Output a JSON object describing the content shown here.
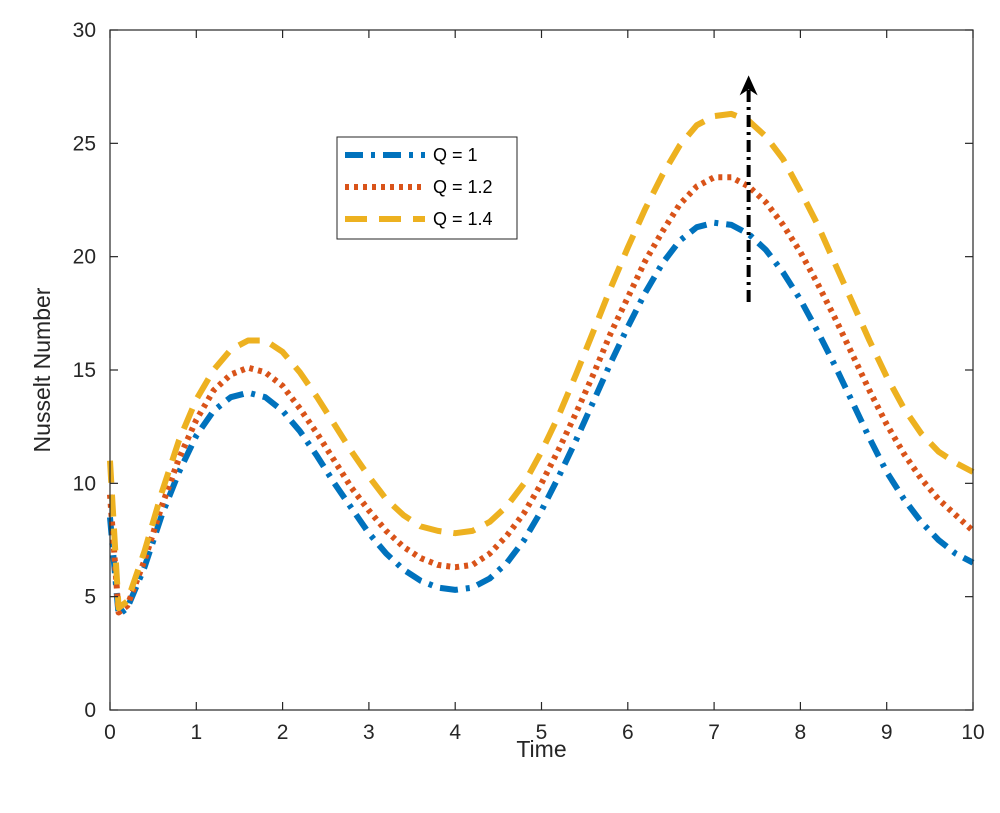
{
  "chart_data": {
    "type": "line",
    "title": "",
    "xlabel": "Time",
    "ylabel": "Nusselt Number",
    "xlim": [
      0,
      10
    ],
    "ylim": [
      0,
      30
    ],
    "xticks": [
      0,
      1,
      2,
      3,
      4,
      5,
      6,
      7,
      8,
      9,
      10
    ],
    "yticks": [
      0,
      5,
      10,
      15,
      20,
      25,
      30
    ],
    "grid": false,
    "legend_position": "upper-left-center",
    "x": [
      0,
      0.1,
      0.2,
      0.4,
      0.6,
      0.8,
      1.0,
      1.2,
      1.4,
      1.6,
      1.8,
      2.0,
      2.2,
      2.4,
      2.6,
      2.8,
      3.0,
      3.2,
      3.4,
      3.6,
      3.8,
      4.0,
      4.2,
      4.4,
      4.6,
      4.8,
      5.0,
      5.2,
      5.4,
      5.6,
      5.8,
      6.0,
      6.2,
      6.4,
      6.6,
      6.8,
      7.0,
      7.2,
      7.4,
      7.6,
      7.8,
      8.0,
      8.2,
      8.4,
      8.6,
      8.8,
      9.0,
      9.2,
      9.4,
      9.6,
      9.8,
      10.0
    ],
    "series": [
      {
        "name": "Q = 1",
        "color": "#0072BD",
        "style": "dash-dot",
        "values": [
          8.5,
          4.2,
          4.5,
          6.3,
          8.6,
          10.5,
          12.1,
          13.2,
          13.8,
          14.0,
          13.8,
          13.2,
          12.3,
          11.2,
          10.0,
          8.9,
          7.8,
          6.9,
          6.2,
          5.7,
          5.4,
          5.3,
          5.4,
          5.8,
          6.5,
          7.5,
          8.8,
          10.3,
          11.9,
          13.6,
          15.3,
          16.9,
          18.4,
          19.7,
          20.7,
          21.3,
          21.5,
          21.4,
          21.0,
          20.3,
          19.3,
          18.1,
          16.7,
          15.2,
          13.6,
          12.0,
          10.5,
          9.3,
          8.3,
          7.5,
          6.9,
          6.5
        ]
      },
      {
        "name": "Q = 1.2",
        "color": "#D95319",
        "style": "dotted",
        "values": [
          9.5,
          4.3,
          4.6,
          6.6,
          9.0,
          11.1,
          12.8,
          14.1,
          14.8,
          15.1,
          14.9,
          14.3,
          13.3,
          12.2,
          11.0,
          9.8,
          8.8,
          7.9,
          7.2,
          6.7,
          6.4,
          6.3,
          6.4,
          6.9,
          7.7,
          8.7,
          10.0,
          11.5,
          13.1,
          14.8,
          16.6,
          18.2,
          19.8,
          21.1,
          22.3,
          23.1,
          23.5,
          23.5,
          23.1,
          22.4,
          21.4,
          20.2,
          18.8,
          17.3,
          15.7,
          14.1,
          12.6,
          11.3,
          10.2,
          9.3,
          8.6,
          7.9
        ]
      },
      {
        "name": "Q = 1.4",
        "color": "#EDB120",
        "style": "dashed",
        "values": [
          11.0,
          4.5,
          4.8,
          7.0,
          9.6,
          11.9,
          13.7,
          15.0,
          15.9,
          16.3,
          16.3,
          15.8,
          14.9,
          13.8,
          12.6,
          11.4,
          10.3,
          9.3,
          8.6,
          8.1,
          7.9,
          7.8,
          7.9,
          8.3,
          9.0,
          10.0,
          11.4,
          13.0,
          14.8,
          16.7,
          18.6,
          20.4,
          22.1,
          23.6,
          24.9,
          25.8,
          26.2,
          26.3,
          26.0,
          25.3,
          24.3,
          22.9,
          21.4,
          19.7,
          18.0,
          16.3,
          14.7,
          13.3,
          12.2,
          11.4,
          10.9,
          10.5
        ]
      }
    ],
    "annotations": [
      {
        "type": "arrow",
        "x": 7.4,
        "y_from": 18.0,
        "y_to": 28.0,
        "direction": "up",
        "color": "#000000"
      }
    ]
  }
}
